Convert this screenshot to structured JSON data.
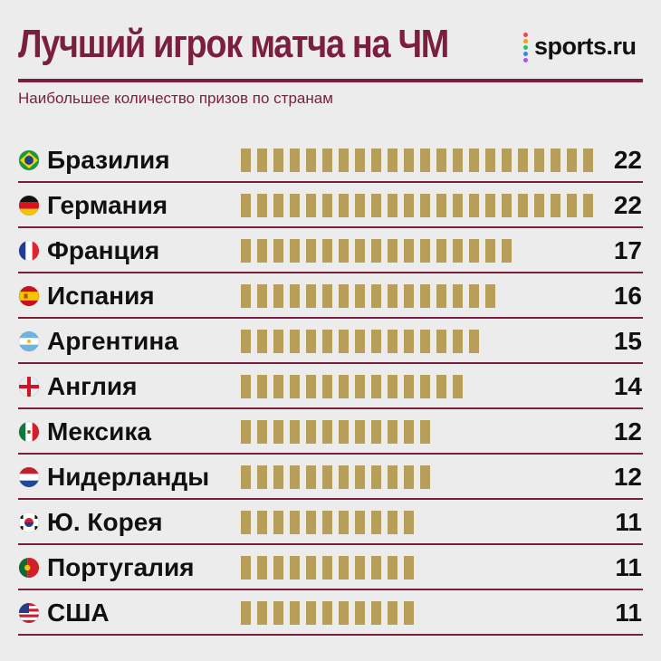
{
  "header": {
    "title": "Лучший игрок матча на ЧМ",
    "subtitle": "Наибольшее количество призов по странам",
    "logo_text": "sports.ru"
  },
  "colors": {
    "accent": "#7a1f3d",
    "bar": "#b79e5b",
    "background": "#ececec",
    "text": "#111111",
    "logo_dots": [
      "#e5484d",
      "#f59e0b",
      "#22c55e",
      "#3b82f6",
      "#a855f7"
    ]
  },
  "chart_data": {
    "type": "bar",
    "orientation": "horizontal",
    "bar_style": "stacked unit blocks",
    "categories": [
      "Бразилия",
      "Германия",
      "Франция",
      "Испания",
      "Аргентина",
      "Англия",
      "Мексика",
      "Нидерланды",
      "Ю. Корея",
      "Португалия",
      "США"
    ],
    "values": [
      22,
      22,
      17,
      16,
      15,
      14,
      12,
      12,
      11,
      11,
      11
    ],
    "flags": [
      "brazil-flag",
      "germany-flag",
      "france-flag",
      "spain-flag",
      "argentina-flag",
      "england-flag",
      "mexico-flag",
      "netherlands-flag",
      "south-korea-flag",
      "portugal-flag",
      "usa-flag"
    ],
    "xmax": 22
  }
}
